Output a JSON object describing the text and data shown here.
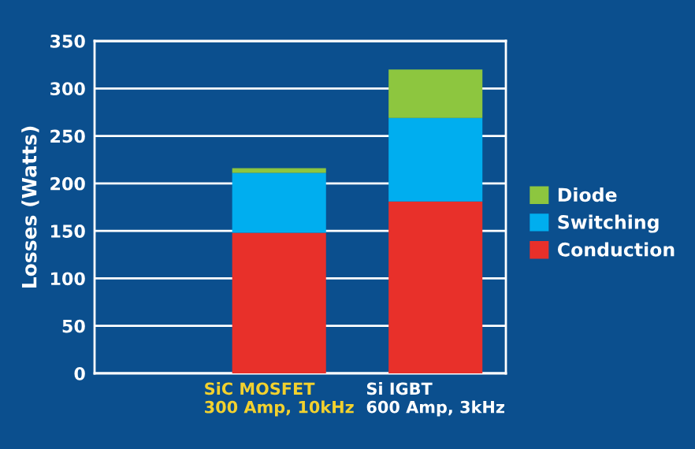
{
  "chart_data": {
    "type": "bar",
    "stacked": true,
    "ylabel": "Losses (Watts)",
    "categories": [
      "SiC MOSFET\n300 Amp, 10kHz",
      "Si IGBT\n600 Amp, 3kHz"
    ],
    "series": [
      {
        "name": "Conduction",
        "color": "#e8302a",
        "values": [
          148,
          181
        ]
      },
      {
        "name": "Switching",
        "color": "#00aeef",
        "values": [
          63,
          88
        ]
      },
      {
        "name": "Diode",
        "color": "#8dc63f",
        "values": [
          5,
          51
        ]
      }
    ],
    "ylim": [
      0,
      350
    ],
    "yticks": [
      0,
      50,
      100,
      150,
      200,
      250,
      300,
      350
    ],
    "grid": "y",
    "legend": "right"
  }
}
